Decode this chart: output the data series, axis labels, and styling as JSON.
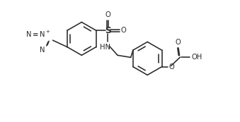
{
  "bg_color": "#ffffff",
  "line_color": "#2a2a2a",
  "line_width": 1.15,
  "font_size": 7.2,
  "figsize": [
    3.39,
    1.73
  ],
  "dpi": 100,
  "xlim": [
    -0.5,
    10.5
  ],
  "ylim": [
    0.5,
    6.2
  ]
}
